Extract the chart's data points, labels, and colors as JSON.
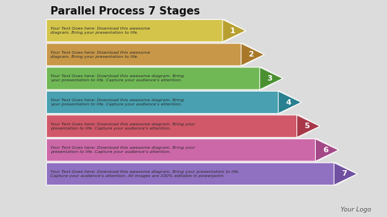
{
  "title": "Parallel Process 7 Stages",
  "title_fontsize": 11,
  "background_color": "#dcdcdc",
  "logo_text": "Your Logo",
  "stages": [
    {
      "number": "1",
      "text": "Your Text Goes here: Download this awesome\ndiagram. Bring your presentation to life.",
      "body_color": "#d4c44a",
      "arrow_color": "#b8a030",
      "text_color": "#2a2a2a"
    },
    {
      "number": "2",
      "text": "Your Text Goes here: Download this awesome\ndiagram. Bring your presentation to life.",
      "body_color": "#c89848",
      "arrow_color": "#a87828",
      "text_color": "#2a2a2a"
    },
    {
      "number": "3",
      "text": "Your Text Goes here: Download this awesome diagram. Bring\nyour presentation to life. Capture your audience's attention.",
      "body_color": "#70b855",
      "arrow_color": "#4a9030",
      "text_color": "#2a2a2a"
    },
    {
      "number": "4",
      "text": "Your Text Goes here: Download this awesome diagram. Bring\nyour presentation to life. Capture your audience's attention.",
      "body_color": "#48a0b0",
      "arrow_color": "#288090",
      "text_color": "#2a2a2a"
    },
    {
      "number": "5",
      "text": "Your Text Goes here: Download this awesome diagram. Bring your\npresentation to life. Capture your audience's attention.",
      "body_color": "#d05868",
      "arrow_color": "#a83848",
      "text_color": "#2a2a2a"
    },
    {
      "number": "6",
      "text": "Your Text Goes here: Download this awesome diagram. Bring your\npresentation to life. Capture your audience's attention.",
      "body_color": "#cc68a8",
      "arrow_color": "#a44888",
      "text_color": "#2a2a2a"
    },
    {
      "number": "7",
      "text": "Your Text Goes here: Download this awesome diagram. Bring your presentation to life.\nCapture your audience's attention. All images are 100% editable in powerpoint.",
      "body_color": "#9070c0",
      "arrow_color": "#7050a0",
      "text_color": "#2a2a2a"
    }
  ]
}
